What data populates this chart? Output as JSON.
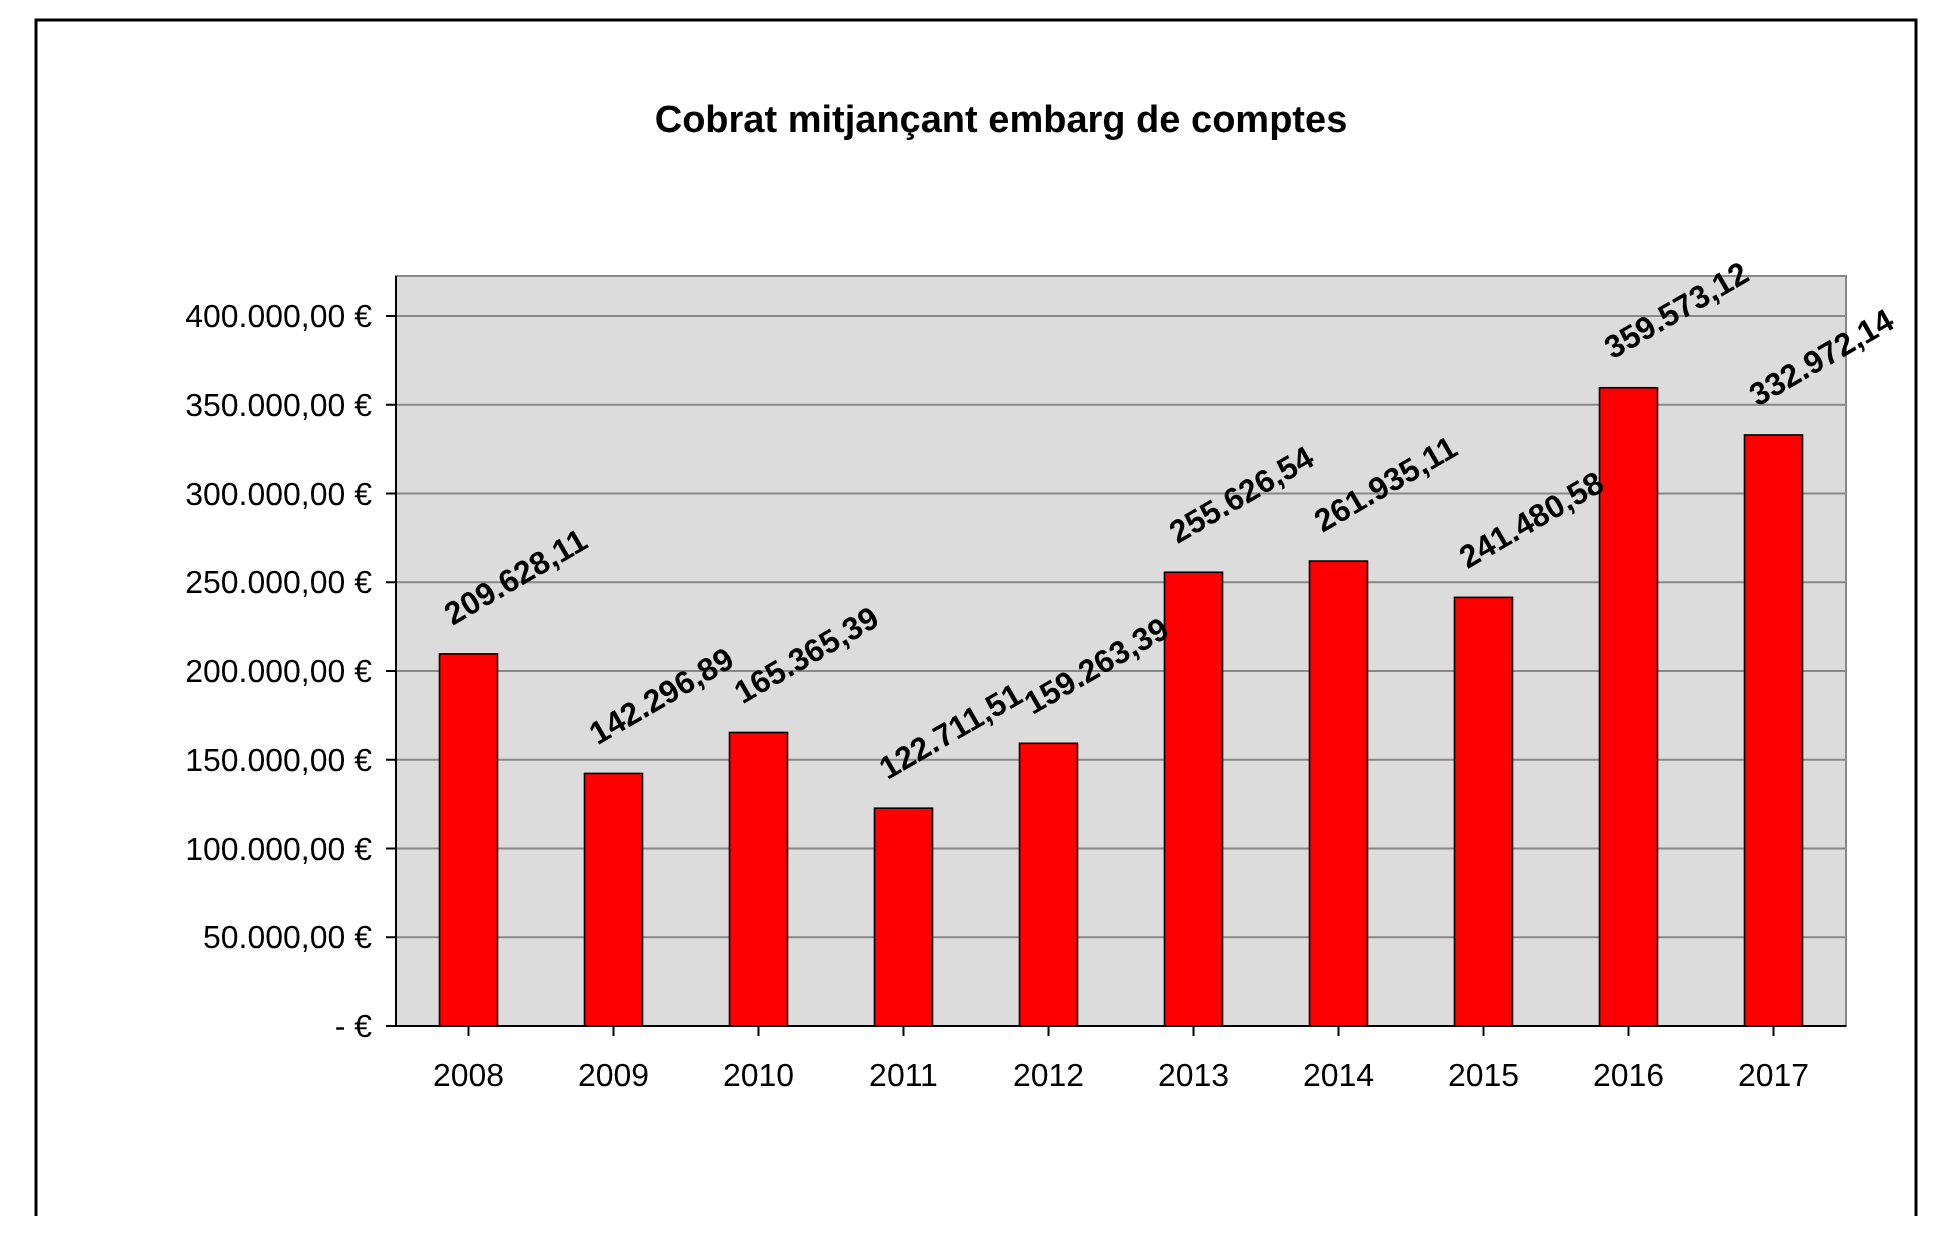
{
  "chart_data": {
    "type": "bar",
    "title": "Cobrat mitjançant embarg de comptes",
    "categories": [
      "2008",
      "2009",
      "2010",
      "2011",
      "2012",
      "2013",
      "2014",
      "2015",
      "2016",
      "2017"
    ],
    "values": [
      209628.11,
      142296.89,
      165365.39,
      122711.51,
      159263.39,
      255626.54,
      261935.11,
      241480.58,
      359573.12,
      332972.14
    ],
    "value_labels": [
      "209.628,11",
      "142.296,89",
      "165.365,39",
      "122.711,51",
      "159.263,39",
      "255.626,54",
      "261.935,11",
      "241.480,58",
      "359.573,12",
      "332.972,14"
    ],
    "color": "#ff0000",
    "ylim": [
      0,
      400000
    ],
    "yticks": [
      {
        "value": 0,
        "label": "-  €"
      },
      {
        "value": 50000,
        "label": "50.000,00 €"
      },
      {
        "value": 100000,
        "label": "100.000,00 €"
      },
      {
        "value": 150000,
        "label": "150.000,00 €"
      },
      {
        "value": 200000,
        "label": "200.000,00 €"
      },
      {
        "value": 250000,
        "label": "250.000,00 €"
      },
      {
        "value": 300000,
        "label": "300.000,00 €"
      },
      {
        "value": 350000,
        "label": "350.000,00 €"
      },
      {
        "value": 400000,
        "label": "400.000,00 €"
      }
    ],
    "grid": "y"
  }
}
